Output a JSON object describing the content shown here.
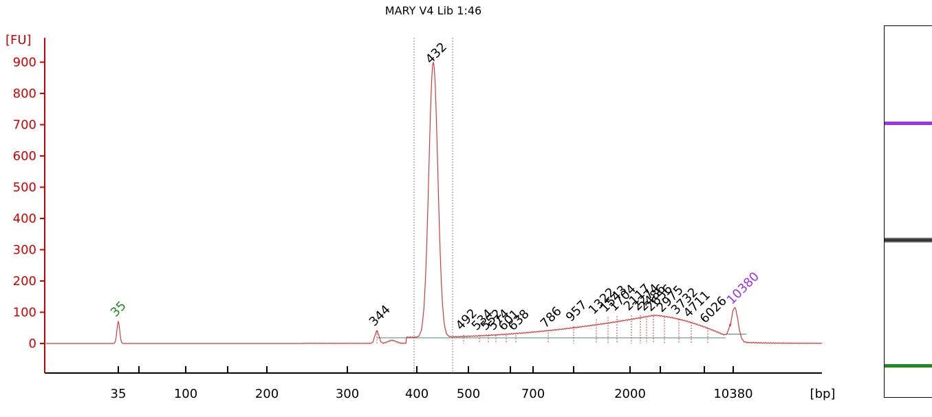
{
  "title": "MARY V4 Lib 1:46",
  "colors": {
    "trace": "#d23a3a",
    "axis": "#d00000",
    "lower_marker": "#1f8a1f",
    "upper_marker": "#9933ee",
    "region_line": "#7777bb",
    "baseline": "#5b9a8b"
  },
  "chart_data": {
    "type": "line",
    "title": "MARY V4 Lib 1:46",
    "ylabel": "[FU]",
    "xlabel": "[bp]",
    "ylim": [
      -90,
      950
    ],
    "yticks": [
      0,
      100,
      200,
      300,
      400,
      500,
      600,
      700,
      800,
      900
    ],
    "xtick_labels": [
      "35",
      "100",
      "200",
      "300",
      "400",
      "500",
      "700",
      "2000",
      "10380"
    ],
    "markers": [
      {
        "label": "35",
        "role": "lower"
      },
      {
        "label": "10380",
        "role": "upper"
      }
    ],
    "peaks": [
      {
        "label": "35",
        "height": 70
      },
      {
        "label": "344",
        "height": 40
      },
      {
        "label": "432",
        "height": 880
      },
      {
        "label": "492",
        "height": 28
      },
      {
        "label": "534",
        "height": 27
      },
      {
        "label": "552",
        "height": 27
      },
      {
        "label": "574",
        "height": 27
      },
      {
        "label": "601",
        "height": 26
      },
      {
        "label": "638",
        "height": 26
      },
      {
        "label": "786",
        "height": 35
      },
      {
        "label": "957",
        "height": 55
      },
      {
        "label": "1322",
        "height": 78
      },
      {
        "label": "1543",
        "height": 85
      },
      {
        "label": "1704",
        "height": 88
      },
      {
        "label": "2117",
        "height": 90
      },
      {
        "label": "2274",
        "height": 90
      },
      {
        "label": "2486",
        "height": 89
      },
      {
        "label": "2656",
        "height": 88
      },
      {
        "label": "2975",
        "height": 85
      },
      {
        "label": "3732",
        "height": 78
      },
      {
        "label": "4711",
        "height": 68
      },
      {
        "label": "6026",
        "height": 50
      },
      {
        "label": "10380",
        "height": 110
      }
    ]
  },
  "gel_bands": [
    {
      "name": "upper-marker-band",
      "color": "#9933ee"
    },
    {
      "name": "main-band",
      "color": "#222222"
    },
    {
      "name": "lower-marker-band",
      "color": "#1f8a1f"
    }
  ]
}
